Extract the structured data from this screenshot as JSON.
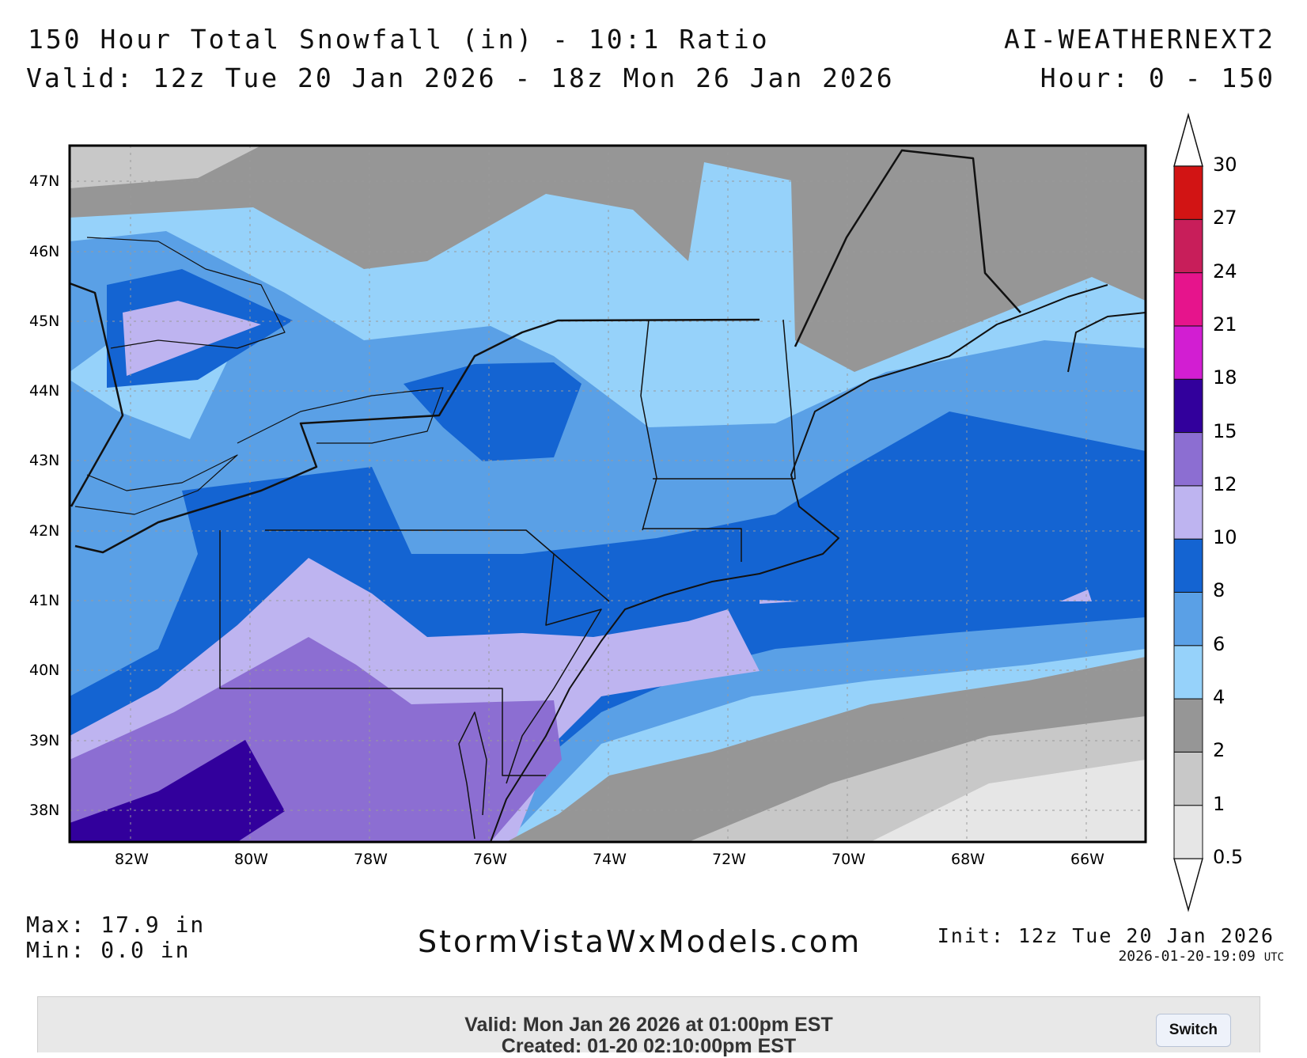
{
  "header": {
    "title": "150 Hour Total Snowfall (in) - 10:1 Ratio",
    "valid_range": "Valid: 12z Tue 20 Jan 2026 - 18z Mon 26 Jan 2026",
    "model": "AI-WEATHERNEXT2",
    "hours": "Hour: 0 - 150"
  },
  "map": {
    "lat_labels": [
      "47N",
      "46N",
      "45N",
      "44N",
      "43N",
      "42N",
      "41N",
      "40N",
      "39N",
      "38N"
    ],
    "lon_labels": [
      "82W",
      "80W",
      "78W",
      "76W",
      "74W",
      "72W",
      "70W",
      "68W",
      "66W"
    ]
  },
  "colorbar": {
    "units": "in",
    "levels": [
      "0.5",
      "1",
      "2",
      "4",
      "6",
      "8",
      "10",
      "12",
      "15",
      "18",
      "21",
      "24",
      "27",
      "30"
    ],
    "colors": [
      "#e6e6e6",
      "#c8c8c8",
      "#969696",
      "#96d2fa",
      "#5aa0e6",
      "#1464d2",
      "#beb4f0",
      "#8c6ed2",
      "#32009c",
      "#d21ed2",
      "#e6148c",
      "#c81e5a",
      "#d21414"
    ]
  },
  "stats": {
    "max": "Max: 17.9 in",
    "min": "Min: 0.0 in"
  },
  "brand": "StormVistaWxModels.com",
  "init": "Init: 12z Tue 20 Jan 2026",
  "generated": "2026-01-20-19:09",
  "generated_tz": "UTC",
  "footer": {
    "valid": "Valid: Mon Jan 26 2026 at 01:00pm EST",
    "created": "Created: 01-20 02:10:00pm EST",
    "switch_label": "Switch"
  }
}
